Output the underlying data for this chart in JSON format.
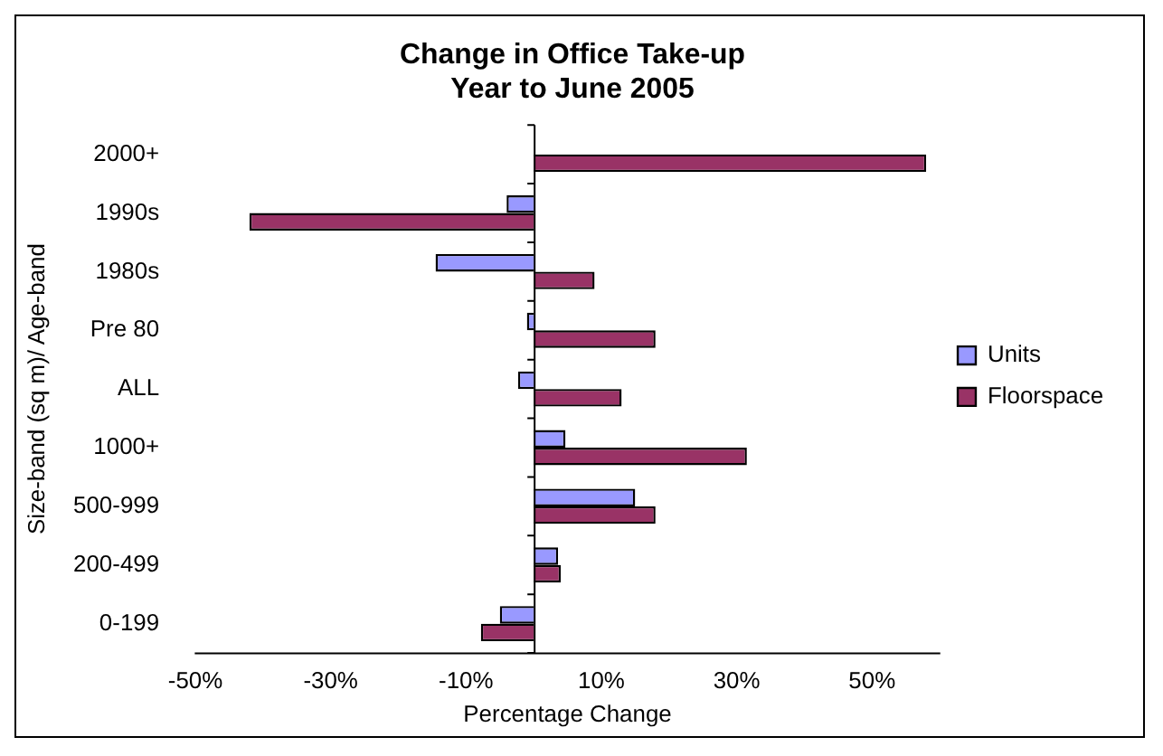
{
  "chart_data": {
    "type": "bar",
    "orientation": "horizontal",
    "title": "Change in Office Take-up\nYear to June 2005",
    "xlabel": "Percentage Change",
    "ylabel": "Size-band (sq m)/ Age-band",
    "categories": [
      "2000+",
      "1990s",
      "1980s",
      "Pre 80",
      "ALL",
      "1000+",
      "500-999",
      "200-499",
      "0-199"
    ],
    "series": [
      {
        "name": "Units",
        "color": "#9999ff",
        "values": [
          0,
          -4,
          -14.5,
          -1,
          -2.3,
          4.7,
          15,
          3.6,
          -5
        ]
      },
      {
        "name": "Floorspace",
        "color": "#993366",
        "values": [
          58,
          -42,
          9,
          18,
          13,
          31.5,
          18,
          4,
          -7.8
        ]
      }
    ],
    "xlim": [
      -50,
      60
    ],
    "xticks": [
      {
        "value": -50,
        "label": "-50%"
      },
      {
        "value": -30,
        "label": "-30%"
      },
      {
        "value": -10,
        "label": "-10%"
      },
      {
        "value": 10,
        "label": "10%"
      },
      {
        "value": 30,
        "label": "30%"
      },
      {
        "value": 50,
        "label": "50%"
      }
    ],
    "grid": false,
    "legend": "right"
  }
}
